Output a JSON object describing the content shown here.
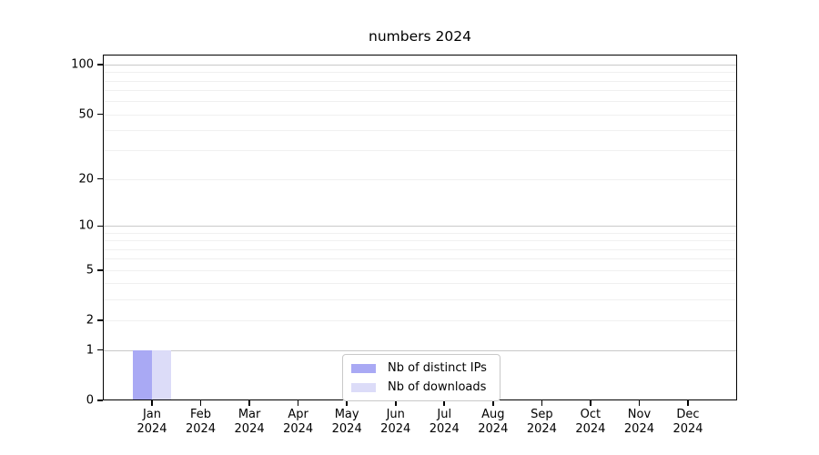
{
  "chart_data": {
    "type": "bar",
    "title": "numbers 2024",
    "xlabel": "",
    "ylabel": "",
    "categories": [
      "Jan 2024",
      "Feb 2024",
      "Mar 2024",
      "Apr 2024",
      "May 2024",
      "Jun 2024",
      "Jul 2024",
      "Aug 2024",
      "Sep 2024",
      "Oct 2024",
      "Nov 2024",
      "Dec 2024"
    ],
    "series": [
      {
        "name": "Nb of distinct IPs",
        "color": "#a9a9f4",
        "values": [
          1,
          0,
          0,
          0,
          0,
          0,
          0,
          0,
          0,
          0,
          0,
          0
        ]
      },
      {
        "name": "Nb of downloads",
        "color": "#dcdcf8",
        "values": [
          1,
          0,
          0,
          0,
          0,
          0,
          0,
          0,
          0,
          0,
          0,
          0
        ]
      }
    ],
    "yscale": "log1p",
    "ylim": [
      0,
      115
    ],
    "y_ticks": [
      "100",
      "50",
      "20",
      "10",
      "5",
      "2",
      "1",
      "0"
    ],
    "y_major_gridlines": [
      1,
      10,
      100
    ],
    "y_minor_gridlines": [
      2,
      3,
      4,
      5,
      6,
      7,
      8,
      9,
      20,
      30,
      40,
      50,
      60,
      70,
      80,
      90
    ],
    "grid": "horizontal",
    "legend_position": "bottom-center-inside"
  },
  "colors": {
    "background": "#ffffff",
    "spine": "#000000",
    "text": "#000000",
    "major_grid": "#c9c9c9",
    "minor_grid": "#f0f0f0",
    "legend_border": "#c9c9c9"
  }
}
